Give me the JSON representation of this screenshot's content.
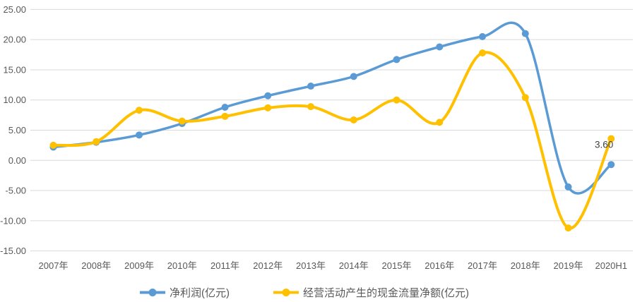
{
  "chart_data": {
    "type": "line",
    "title": "",
    "xlabel": "",
    "ylabel": "",
    "categories": [
      "2007年",
      "2008年",
      "2009年",
      "2010年",
      "2011年",
      "2012年",
      "2013年",
      "2014年",
      "2015年",
      "2016年",
      "2017年",
      "2018年",
      "2019年",
      "2020H1"
    ],
    "series": [
      {
        "name": "净利润(亿元)",
        "color": "#5B9BD5",
        "line_width": 3.5,
        "values": [
          2.2,
          3.0,
          4.2,
          6.1,
          8.8,
          10.7,
          12.3,
          13.9,
          16.7,
          18.8,
          20.5,
          21.0,
          -4.4,
          -0.7
        ]
      },
      {
        "name": "经营活动产生的现金流量净额(亿元)",
        "color": "#FFC000",
        "line_width": 4,
        "values": [
          2.5,
          3.1,
          8.3,
          6.5,
          7.3,
          8.7,
          8.9,
          6.7,
          10.0,
          6.3,
          17.8,
          10.4,
          -11.2,
          3.6
        ]
      }
    ],
    "ylim": [
      -15,
      25
    ],
    "ytick_step": 5,
    "ytick_labels": [
      "25.00",
      "20.00",
      "15.00",
      "10.00",
      "5.00",
      "0.00",
      "-5.00",
      "-10.00",
      "-15.00"
    ],
    "grid": true,
    "line_style": "smooth",
    "legend_position": "bottom",
    "annotation": {
      "text": "3.60",
      "series_index": 1,
      "point_index": 13
    }
  },
  "colors": {
    "background": "#FFFFFF",
    "grid": "#D9D9D9",
    "axis_text": "#595959",
    "annotation_text": "#404040"
  }
}
